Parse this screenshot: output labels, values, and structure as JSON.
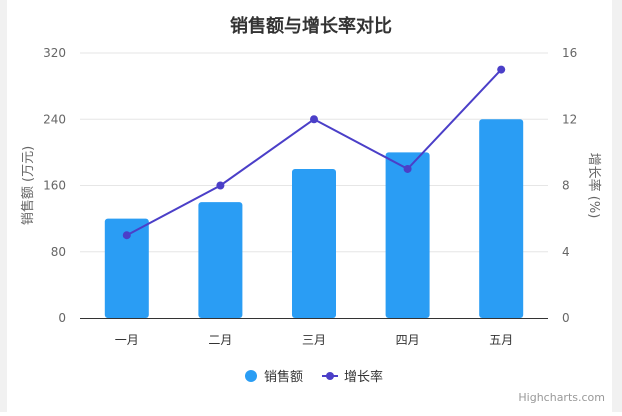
{
  "chart_data": {
    "type": "bar",
    "title": "销售额与增长率对比",
    "categories": [
      "一月",
      "二月",
      "三月",
      "四月",
      "五月"
    ],
    "series": [
      {
        "name": "销售额",
        "type": "bar",
        "axis": "left",
        "color": "#2a9df4",
        "values": [
          120,
          140,
          180,
          200,
          240
        ]
      },
      {
        "name": "增长率",
        "type": "line",
        "axis": "right",
        "color": "#4b3fc8",
        "values": [
          5,
          8,
          12,
          9,
          15
        ]
      }
    ],
    "y_left": {
      "label": "销售额 (万元)",
      "min": 0,
      "max": 320,
      "ticks": [
        "0",
        "80",
        "160",
        "240",
        "320"
      ]
    },
    "y_right": {
      "label": "增长率 (%)",
      "min": 0,
      "max": 16,
      "ticks": [
        "0",
        "4",
        "8",
        "12",
        "16"
      ]
    },
    "grid": true,
    "legend_position": "bottom-center",
    "credits": "Highcharts.com"
  }
}
